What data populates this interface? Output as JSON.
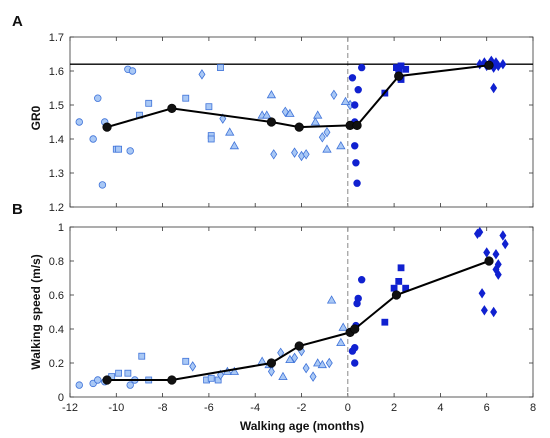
{
  "chart_data": [
    {
      "panel": "A",
      "type": "scatter",
      "ylabel": "GR0",
      "xlabel": "",
      "xlim": [
        -12,
        8
      ],
      "ylim": [
        1.2,
        1.7
      ],
      "xticks": [
        "-12",
        "-10",
        "-8",
        "-6",
        "-4",
        "-2",
        "0",
        "2",
        "4",
        "6",
        "8"
      ],
      "yticks": [
        "1.2",
        "1.3",
        "1.4",
        "1.5",
        "1.6",
        "1.7"
      ],
      "reference_line_y": 1.62,
      "vertical_line_x": 0,
      "mean_line": {
        "x": [
          -10.4,
          -7.6,
          -3.3,
          -2.1,
          0.1,
          0.4,
          2.2,
          6.1
        ],
        "y": [
          1.435,
          1.49,
          1.45,
          1.435,
          1.44,
          1.44,
          1.585,
          1.617
        ]
      },
      "points": [
        {
          "x": -11.6,
          "y": 1.45,
          "m": "circle",
          "f": "light"
        },
        {
          "x": -11.0,
          "y": 1.4,
          "m": "circle",
          "f": "light"
        },
        {
          "x": -10.8,
          "y": 1.52,
          "m": "circle",
          "f": "light"
        },
        {
          "x": -10.6,
          "y": 1.265,
          "m": "circle",
          "f": "light"
        },
        {
          "x": -10.5,
          "y": 1.45,
          "m": "circle",
          "f": "light"
        },
        {
          "x": -9.4,
          "y": 1.365,
          "m": "circle",
          "f": "light"
        },
        {
          "x": -9.5,
          "y": 1.605,
          "m": "circle",
          "f": "light"
        },
        {
          "x": -9.3,
          "y": 1.6,
          "m": "circle",
          "f": "light"
        },
        {
          "x": -10.0,
          "y": 1.37,
          "m": "square",
          "f": "light"
        },
        {
          "x": -9.9,
          "y": 1.37,
          "m": "square",
          "f": "light"
        },
        {
          "x": -9.0,
          "y": 1.47,
          "m": "square",
          "f": "light"
        },
        {
          "x": -8.6,
          "y": 1.505,
          "m": "square",
          "f": "light"
        },
        {
          "x": -7.0,
          "y": 1.52,
          "m": "square",
          "f": "light"
        },
        {
          "x": -6.0,
          "y": 1.495,
          "m": "square",
          "f": "light"
        },
        {
          "x": -5.9,
          "y": 1.41,
          "m": "square",
          "f": "light"
        },
        {
          "x": -5.9,
          "y": 1.4,
          "m": "square",
          "f": "light"
        },
        {
          "x": -5.5,
          "y": 1.61,
          "m": "square",
          "f": "light"
        },
        {
          "x": -5.1,
          "y": 1.42,
          "m": "triangle",
          "f": "light"
        },
        {
          "x": -4.9,
          "y": 1.38,
          "m": "triangle",
          "f": "light"
        },
        {
          "x": -3.7,
          "y": 1.47,
          "m": "triangle",
          "f": "light"
        },
        {
          "x": -3.5,
          "y": 1.47,
          "m": "triangle",
          "f": "light"
        },
        {
          "x": -3.3,
          "y": 1.53,
          "m": "triangle",
          "f": "light"
        },
        {
          "x": -2.5,
          "y": 1.475,
          "m": "triangle",
          "f": "light"
        },
        {
          "x": -1.4,
          "y": 1.45,
          "m": "triangle",
          "f": "light"
        },
        {
          "x": -1.3,
          "y": 1.47,
          "m": "triangle",
          "f": "light"
        },
        {
          "x": -0.9,
          "y": 1.37,
          "m": "triangle",
          "f": "light"
        },
        {
          "x": -0.3,
          "y": 1.38,
          "m": "triangle",
          "f": "light"
        },
        {
          "x": -6.3,
          "y": 1.59,
          "m": "diamond",
          "f": "light"
        },
        {
          "x": -5.4,
          "y": 1.46,
          "m": "diamond",
          "f": "light"
        },
        {
          "x": -3.2,
          "y": 1.355,
          "m": "diamond",
          "f": "light"
        },
        {
          "x": -2.7,
          "y": 1.48,
          "m": "diamond",
          "f": "light"
        },
        {
          "x": -2.3,
          "y": 1.36,
          "m": "diamond",
          "f": "light"
        },
        {
          "x": -2.0,
          "y": 1.35,
          "m": "diamond",
          "f": "light"
        },
        {
          "x": -1.8,
          "y": 1.355,
          "m": "diamond",
          "f": "light"
        },
        {
          "x": -1.1,
          "y": 1.405,
          "m": "diamond",
          "f": "light"
        },
        {
          "x": -0.9,
          "y": 1.42,
          "m": "diamond",
          "f": "light"
        },
        {
          "x": -0.6,
          "y": 1.53,
          "m": "diamond",
          "f": "light"
        },
        {
          "x": 0.1,
          "y": 1.5,
          "m": "diamond",
          "f": "light"
        },
        {
          "x": -0.1,
          "y": 1.51,
          "m": "triangle",
          "f": "light"
        },
        {
          "x": 0.2,
          "y": 1.58,
          "m": "circle",
          "f": "dark"
        },
        {
          "x": 0.3,
          "y": 1.5,
          "m": "circle",
          "f": "dark"
        },
        {
          "x": 0.3,
          "y": 1.45,
          "m": "circle",
          "f": "dark"
        },
        {
          "x": 0.3,
          "y": 1.38,
          "m": "circle",
          "f": "dark"
        },
        {
          "x": 0.35,
          "y": 1.33,
          "m": "circle",
          "f": "dark"
        },
        {
          "x": 0.4,
          "y": 1.27,
          "m": "circle",
          "f": "dark"
        },
        {
          "x": 0.45,
          "y": 1.545,
          "m": "circle",
          "f": "dark"
        },
        {
          "x": 0.6,
          "y": 1.61,
          "m": "circle",
          "f": "dark"
        },
        {
          "x": 1.6,
          "y": 1.535,
          "m": "square",
          "f": "dark"
        },
        {
          "x": 2.1,
          "y": 1.61,
          "m": "square",
          "f": "dark"
        },
        {
          "x": 2.2,
          "y": 1.6,
          "m": "square",
          "f": "dark"
        },
        {
          "x": 2.3,
          "y": 1.615,
          "m": "square",
          "f": "dark"
        },
        {
          "x": 2.5,
          "y": 1.605,
          "m": "square",
          "f": "dark"
        },
        {
          "x": 2.3,
          "y": 1.575,
          "m": "square",
          "f": "dark"
        },
        {
          "x": 5.7,
          "y": 1.62,
          "m": "diamond",
          "f": "dark"
        },
        {
          "x": 5.9,
          "y": 1.625,
          "m": "diamond",
          "f": "dark"
        },
        {
          "x": 6.0,
          "y": 1.615,
          "m": "diamond",
          "f": "dark"
        },
        {
          "x": 6.2,
          "y": 1.63,
          "m": "diamond",
          "f": "dark"
        },
        {
          "x": 6.3,
          "y": 1.61,
          "m": "diamond",
          "f": "dark"
        },
        {
          "x": 6.4,
          "y": 1.625,
          "m": "diamond",
          "f": "dark"
        },
        {
          "x": 6.5,
          "y": 1.615,
          "m": "diamond",
          "f": "dark"
        },
        {
          "x": 6.7,
          "y": 1.62,
          "m": "diamond",
          "f": "dark"
        },
        {
          "x": 6.3,
          "y": 1.55,
          "m": "diamond",
          "f": "dark"
        }
      ]
    },
    {
      "panel": "B",
      "type": "scatter",
      "ylabel": "Walking speed (m/s)",
      "xlabel": "Walking age (months)",
      "xlim": [
        -12,
        8
      ],
      "ylim": [
        0,
        1
      ],
      "xticks": [
        "-12",
        "-10",
        "-8",
        "-6",
        "-4",
        "-2",
        "0",
        "2",
        "4",
        "6",
        "8"
      ],
      "yticks": [
        "0",
        "0.2",
        "0.4",
        "0.6",
        "0.8",
        "1"
      ],
      "vertical_line_x": 0,
      "mean_line": {
        "x": [
          -10.4,
          -7.6,
          -3.3,
          -2.1,
          0.1,
          0.3,
          2.1,
          6.1
        ],
        "y": [
          0.1,
          0.1,
          0.2,
          0.3,
          0.38,
          0.4,
          0.6,
          0.8
        ]
      },
      "points": [
        {
          "x": -11.6,
          "y": 0.07,
          "m": "circle",
          "f": "light"
        },
        {
          "x": -11.0,
          "y": 0.08,
          "m": "circle",
          "f": "light"
        },
        {
          "x": -10.8,
          "y": 0.1,
          "m": "circle",
          "f": "light"
        },
        {
          "x": -10.5,
          "y": 0.09,
          "m": "circle",
          "f": "light"
        },
        {
          "x": -9.4,
          "y": 0.07,
          "m": "circle",
          "f": "light"
        },
        {
          "x": -9.2,
          "y": 0.1,
          "m": "circle",
          "f": "light"
        },
        {
          "x": -10.2,
          "y": 0.12,
          "m": "square",
          "f": "light"
        },
        {
          "x": -9.9,
          "y": 0.14,
          "m": "square",
          "f": "light"
        },
        {
          "x": -9.5,
          "y": 0.14,
          "m": "square",
          "f": "light"
        },
        {
          "x": -8.9,
          "y": 0.24,
          "m": "square",
          "f": "light"
        },
        {
          "x": -8.6,
          "y": 0.1,
          "m": "square",
          "f": "light"
        },
        {
          "x": -7.0,
          "y": 0.21,
          "m": "square",
          "f": "light"
        },
        {
          "x": -6.1,
          "y": 0.1,
          "m": "square",
          "f": "light"
        },
        {
          "x": -5.9,
          "y": 0.11,
          "m": "square",
          "f": "light"
        },
        {
          "x": -5.6,
          "y": 0.1,
          "m": "square",
          "f": "light"
        },
        {
          "x": -5.2,
          "y": 0.15,
          "m": "triangle",
          "f": "light"
        },
        {
          "x": -4.9,
          "y": 0.15,
          "m": "triangle",
          "f": "light"
        },
        {
          "x": -3.7,
          "y": 0.21,
          "m": "triangle",
          "f": "light"
        },
        {
          "x": -3.4,
          "y": 0.19,
          "m": "triangle",
          "f": "light"
        },
        {
          "x": -2.8,
          "y": 0.12,
          "m": "triangle",
          "f": "light"
        },
        {
          "x": -2.5,
          "y": 0.22,
          "m": "triangle",
          "f": "light"
        },
        {
          "x": -1.3,
          "y": 0.2,
          "m": "triangle",
          "f": "light"
        },
        {
          "x": -1.1,
          "y": 0.19,
          "m": "triangle",
          "f": "light"
        },
        {
          "x": -0.3,
          "y": 0.32,
          "m": "triangle",
          "f": "light"
        },
        {
          "x": -0.7,
          "y": 0.57,
          "m": "triangle",
          "f": "light"
        },
        {
          "x": -0.2,
          "y": 0.41,
          "m": "triangle",
          "f": "light"
        },
        {
          "x": -6.7,
          "y": 0.18,
          "m": "diamond",
          "f": "light"
        },
        {
          "x": -5.5,
          "y": 0.13,
          "m": "diamond",
          "f": "light"
        },
        {
          "x": -3.3,
          "y": 0.15,
          "m": "diamond",
          "f": "light"
        },
        {
          "x": -2.9,
          "y": 0.26,
          "m": "diamond",
          "f": "light"
        },
        {
          "x": -2.3,
          "y": 0.23,
          "m": "diamond",
          "f": "light"
        },
        {
          "x": -2.0,
          "y": 0.27,
          "m": "diamond",
          "f": "light"
        },
        {
          "x": -1.8,
          "y": 0.17,
          "m": "diamond",
          "f": "light"
        },
        {
          "x": -1.5,
          "y": 0.12,
          "m": "diamond",
          "f": "light"
        },
        {
          "x": -0.8,
          "y": 0.2,
          "m": "diamond",
          "f": "light"
        },
        {
          "x": 0.2,
          "y": 0.27,
          "m": "circle",
          "f": "dark"
        },
        {
          "x": 0.3,
          "y": 0.29,
          "m": "circle",
          "f": "dark"
        },
        {
          "x": 0.3,
          "y": 0.2,
          "m": "circle",
          "f": "dark"
        },
        {
          "x": 0.35,
          "y": 0.42,
          "m": "circle",
          "f": "dark"
        },
        {
          "x": 0.4,
          "y": 0.55,
          "m": "circle",
          "f": "dark"
        },
        {
          "x": 0.45,
          "y": 0.58,
          "m": "circle",
          "f": "dark"
        },
        {
          "x": 0.6,
          "y": 0.69,
          "m": "circle",
          "f": "dark"
        },
        {
          "x": 1.6,
          "y": 0.44,
          "m": "square",
          "f": "dark"
        },
        {
          "x": 2.0,
          "y": 0.64,
          "m": "square",
          "f": "dark"
        },
        {
          "x": 2.2,
          "y": 0.68,
          "m": "square",
          "f": "dark"
        },
        {
          "x": 2.3,
          "y": 0.76,
          "m": "square",
          "f": "dark"
        },
        {
          "x": 2.5,
          "y": 0.64,
          "m": "square",
          "f": "dark"
        },
        {
          "x": 5.6,
          "y": 0.96,
          "m": "diamond",
          "f": "dark"
        },
        {
          "x": 5.7,
          "y": 0.97,
          "m": "diamond",
          "f": "dark"
        },
        {
          "x": 5.8,
          "y": 0.61,
          "m": "diamond",
          "f": "dark"
        },
        {
          "x": 5.9,
          "y": 0.51,
          "m": "diamond",
          "f": "dark"
        },
        {
          "x": 6.0,
          "y": 0.85,
          "m": "diamond",
          "f": "dark"
        },
        {
          "x": 6.3,
          "y": 0.5,
          "m": "diamond",
          "f": "dark"
        },
        {
          "x": 6.4,
          "y": 0.84,
          "m": "diamond",
          "f": "dark"
        },
        {
          "x": 6.4,
          "y": 0.75,
          "m": "diamond",
          "f": "dark"
        },
        {
          "x": 6.5,
          "y": 0.72,
          "m": "diamond",
          "f": "dark"
        },
        {
          "x": 6.5,
          "y": 0.78,
          "m": "diamond",
          "f": "dark"
        },
        {
          "x": 6.7,
          "y": 0.95,
          "m": "diamond",
          "f": "dark"
        },
        {
          "x": 6.8,
          "y": 0.9,
          "m": "diamond",
          "f": "dark"
        }
      ]
    }
  ],
  "colors": {
    "light_fill": "#a9c8f5",
    "light_stroke": "#3f73d9",
    "dark_fill": "#1021d0",
    "mean_line": "#000000",
    "ref_line": "#000000",
    "vline": "#888888"
  }
}
